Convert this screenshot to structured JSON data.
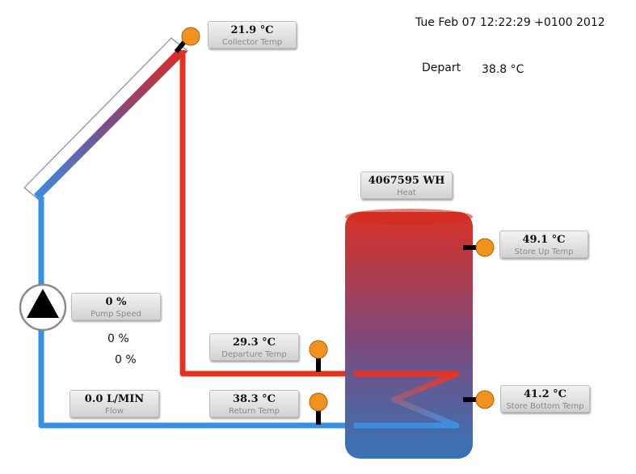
{
  "header": {
    "datetime": "Tue Feb 07 12:22:29 +0100 2012",
    "depart_label": "Depart",
    "depart_value": "38.8 °C"
  },
  "sensors": {
    "collector": {
      "value": "21.9 °C",
      "label": "Collector Temp"
    },
    "heat": {
      "value": "4067595 WH",
      "label": "Heat"
    },
    "store_up": {
      "value": "49.1 °C",
      "label": "Store Up Temp"
    },
    "pump_speed": {
      "value": "0 %",
      "label": "Pump Speed"
    },
    "departure": {
      "value": "29.3 °C",
      "label": "Departure Temp"
    },
    "flow": {
      "value": "0.0 L/MIN",
      "label": "Flow"
    },
    "return": {
      "value": "38.3 °C",
      "label": "Return Temp"
    },
    "store_bottom": {
      "value": "41.2 °C",
      "label": "Store Bottom Temp"
    }
  },
  "extra": {
    "percent_1": "0 %",
    "percent_2": "0 %"
  },
  "colors": {
    "hot_pipe": "#e53323",
    "cold_pipe": "#3b8fe0",
    "sensor_dot": "#f0931e",
    "tank_top": "#d93125",
    "tank_bottom": "#3574b8"
  }
}
